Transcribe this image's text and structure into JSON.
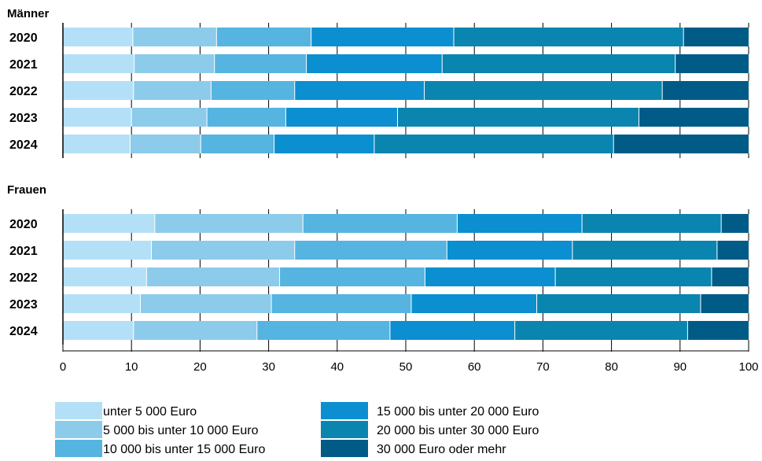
{
  "chart_data": {
    "type": "bar",
    "orientation": "horizontal",
    "stacked": true,
    "xlim": [
      0,
      100
    ],
    "xticks": [
      0,
      10,
      20,
      30,
      40,
      50,
      60,
      70,
      80,
      90,
      100
    ],
    "groups": [
      {
        "label": "Männer",
        "categories": [
          "2020",
          "2021",
          "2022",
          "2023",
          "2024"
        ],
        "series": [
          {
            "name": "unter 5 000 Euro",
            "values": [
              10.2,
              10.4,
              10.3,
              10.0,
              9.8
            ]
          },
          {
            "name": "5 000 bis unter 10 000 Euro",
            "values": [
              12.2,
              11.7,
              11.3,
              11.0,
              10.3
            ]
          },
          {
            "name": "10 000 bis unter 15 000 Euro",
            "values": [
              13.8,
              13.4,
              12.2,
              11.5,
              10.7
            ]
          },
          {
            "name": "15 000 bis unter 20 000 Euro",
            "values": [
              20.8,
              19.8,
              18.9,
              16.3,
              14.6
            ]
          },
          {
            "name": "20 000 bis unter 30 000 Euro",
            "values": [
              33.5,
              34.0,
              34.7,
              35.2,
              34.9
            ]
          },
          {
            "name": "30 000 Euro oder mehr",
            "values": [
              9.5,
              10.7,
              12.6,
              16.0,
              19.7
            ]
          }
        ]
      },
      {
        "label": "Frauen",
        "categories": [
          "2020",
          "2021",
          "2022",
          "2023",
          "2024"
        ],
        "series": [
          {
            "name": "unter 5 000 Euro",
            "values": [
              13.4,
              12.9,
              12.2,
              11.3,
              10.3
            ]
          },
          {
            "name": "5 000 bis unter 10 000 Euro",
            "values": [
              21.6,
              20.9,
              19.4,
              19.1,
              18.0
            ]
          },
          {
            "name": "10 000 bis unter 15 000 Euro",
            "values": [
              22.5,
              22.2,
              21.2,
              20.4,
              19.4
            ]
          },
          {
            "name": "15 000 bis unter 20 000 Euro",
            "values": [
              18.2,
              18.3,
              19.0,
              18.3,
              18.2
            ]
          },
          {
            "name": "20 000 bis unter 30 000 Euro",
            "values": [
              20.3,
              21.1,
              22.8,
              23.9,
              25.2
            ]
          },
          {
            "name": "30 000 Euro oder mehr",
            "values": [
              4.0,
              4.6,
              5.4,
              7.0,
              8.9
            ]
          }
        ]
      }
    ],
    "legend": [
      "unter 5 000 Euro",
      "5 000 bis unter 10 000 Euro",
      "10 000 bis unter 15 000 Euro",
      "15 000 bis unter 20 000 Euro",
      "20 000 bis unter 30 000 Euro",
      "30 000 Euro oder mehr"
    ],
    "legend_position": "bottom",
    "colors": [
      "#b3e0f7",
      "#8dcbeb",
      "#56b4e0",
      "#0b8fd0",
      "#0a85af",
      "#005b87"
    ],
    "grid": true
  }
}
